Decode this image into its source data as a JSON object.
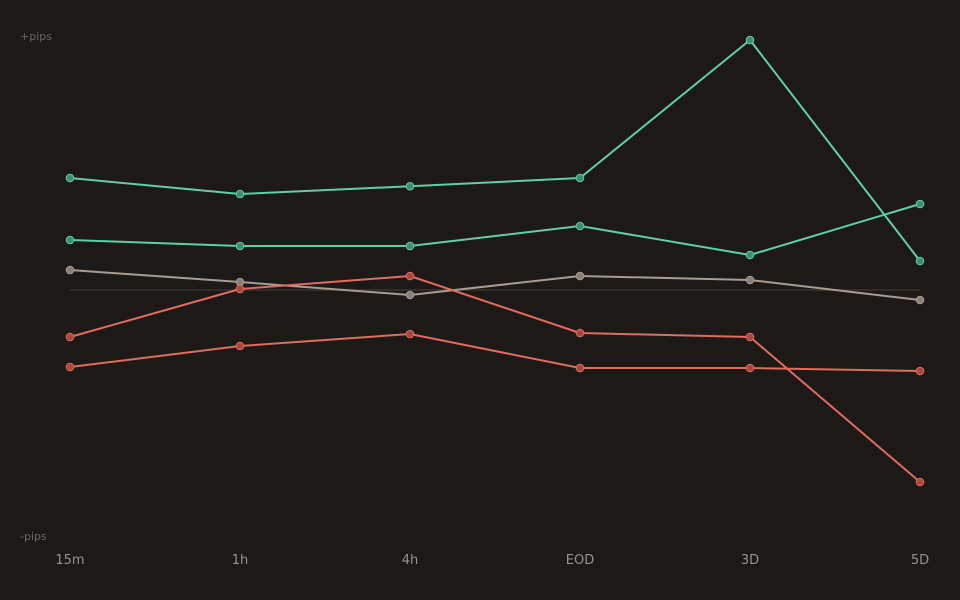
{
  "colors": {
    "background": "#1d1916",
    "gain": "#5fcfa5",
    "gain_point": "#3f8f6c",
    "neutral": "#a69c93",
    "neutral_point": "#8a8077",
    "loss": "#e06b5e",
    "loss_point": "#a9483e",
    "zero_line": "#3a332e"
  },
  "chart_data": {
    "type": "line",
    "title": "",
    "xlabel": "",
    "ylabel": "",
    "y_top_label": "+pips",
    "y_bottom_label": "-pips",
    "categories": [
      "15m",
      "1h",
      "4h",
      "EOD",
      "3D",
      "5D"
    ],
    "ylim": [
      -100,
      100
    ],
    "zero_line": true,
    "grid": false,
    "legend": "none",
    "series": [
      {
        "tone": "gain",
        "values": [
          44.8,
          38.4,
          41.5,
          44.8,
          100,
          11.6
        ]
      },
      {
        "tone": "gain",
        "values": [
          20,
          17.6,
          17.6,
          25.6,
          14,
          34.4
        ]
      },
      {
        "tone": "neutral",
        "values": [
          8,
          3.2,
          -2,
          5.6,
          4,
          -4
        ]
      },
      {
        "tone": "loss",
        "values": [
          -18.8,
          0.4,
          5.6,
          -17.2,
          -18.8,
          -76.8
        ]
      },
      {
        "tone": "loss",
        "values": [
          -30.8,
          -22.4,
          -17.6,
          -31.2,
          -31.2,
          -32.4
        ]
      }
    ]
  }
}
